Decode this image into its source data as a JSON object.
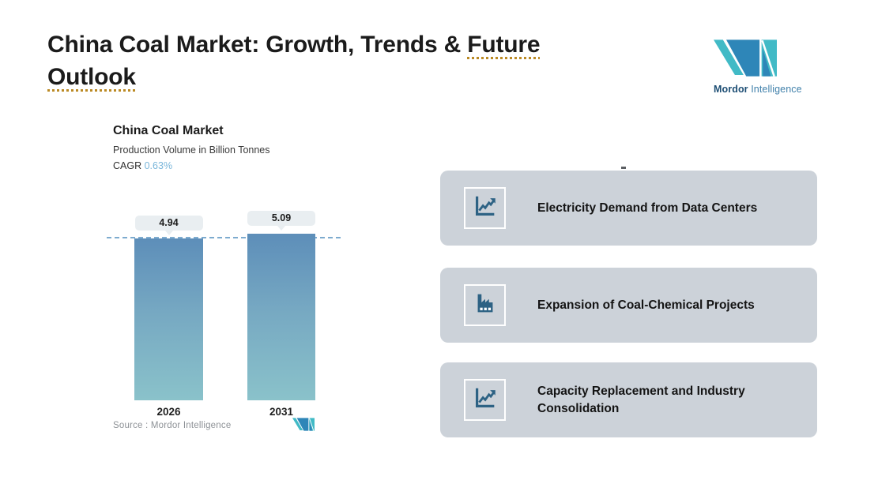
{
  "header": {
    "title_plain": "China Coal Market: Growth, Trends & ",
    "title_underlined": "Future Outlook"
  },
  "brand": {
    "name_bold": "Mordor",
    "name_light": " Intelligence"
  },
  "chart_data": {
    "type": "bar",
    "title": "China Coal Market",
    "subtitle": "Production Volume in Billion Tonnes",
    "cagr_label": "CAGR",
    "cagr_value": "0.63%",
    "categories": [
      "2026",
      "2031"
    ],
    "values": [
      4.94,
      5.09
    ],
    "data_labels": [
      "4.94",
      "5.09"
    ],
    "unit": "Billion Tonnes",
    "reference_line": 4.94,
    "ylim": [
      0,
      5.5
    ],
    "grid": false,
    "legend": "none",
    "source": "Source :  Mordor Intelligence"
  },
  "drivers": {
    "items": [
      {
        "icon": "line-chart-up-icon",
        "label": "Electricity Demand from Data Centers"
      },
      {
        "icon": "factory-icon",
        "label": "Expansion of Coal-Chemical Projects"
      },
      {
        "icon": "line-chart-up-icon",
        "label": "Capacity Replacement and Industry Consolidation"
      }
    ]
  },
  "colors": {
    "bar_gradient_top": "#5d8eb9",
    "bar_gradient_bottom": "#8ac2ca",
    "dashed_line": "#7dabcf",
    "cagr_value": "#79b6da",
    "card_background": "#ccd2d9",
    "icon_blue": "#2d6284",
    "brand_teal": "#41bac6",
    "brand_blue": "#2e86b8",
    "title_underline": "#bb8a24",
    "bubble_background": "#e9eef1"
  }
}
